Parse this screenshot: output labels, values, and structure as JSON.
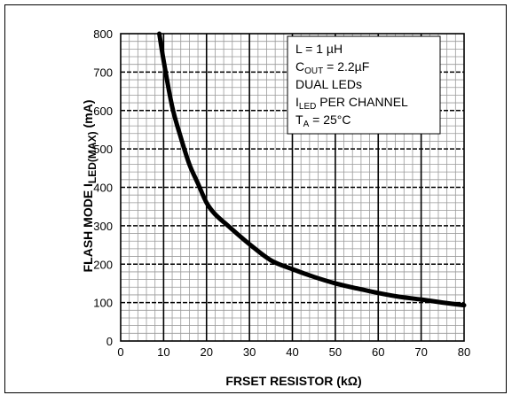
{
  "chart_data": {
    "type": "line",
    "title": "",
    "xlabel": "FRSET RESISTOR (kΩ)",
    "ylabel": "FLASH MODE I_LED(MAX) (mA)",
    "ylabel_parts": {
      "main": "FLASH MODE I",
      "sub": "LED(MAX)",
      "unit": " (mA)"
    },
    "xlim": [
      0,
      80
    ],
    "ylim": [
      0,
      800
    ],
    "x_ticks": [
      "0",
      "10",
      "20",
      "30",
      "40",
      "50",
      "60",
      "70",
      "80"
    ],
    "y_ticks": [
      "0",
      "100",
      "200",
      "300",
      "400",
      "500",
      "600",
      "700",
      "800"
    ],
    "grid": true,
    "legend": "none",
    "series": [
      {
        "x": [
          9,
          10,
          12,
          14,
          16,
          18,
          20,
          22,
          25,
          30,
          35,
          40,
          45,
          50,
          55,
          60,
          65,
          70,
          75,
          80
        ],
        "y": [
          800,
          730,
          610,
          530,
          460,
          410,
          360,
          330,
          300,
          252,
          210,
          187,
          167,
          150,
          137,
          125,
          115,
          108,
          100,
          93
        ]
      }
    ],
    "annotations": [
      {
        "main": "L = 1 µH",
        "sub": "",
        "tail": ""
      },
      {
        "main": "C",
        "sub": "OUT",
        "tail": " = 2.2µF"
      },
      {
        "main": "DUAL LEDs",
        "sub": "",
        "tail": ""
      },
      {
        "main": "I",
        "sub": "LED",
        "tail": " PER CHANNEL"
      },
      {
        "main": "T",
        "sub": "A",
        "tail": " = 25°C"
      }
    ],
    "colors": {
      "line": "#000000",
      "minor_grid": "#9a9a9a",
      "major_grid": "#000000"
    }
  }
}
